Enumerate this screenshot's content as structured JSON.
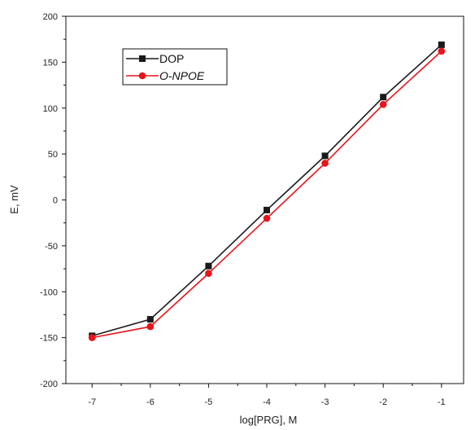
{
  "chart_data": {
    "type": "line",
    "title": "",
    "xlabel": "log[PRG], M",
    "ylabel": "E, mV",
    "xlim": [
      -7.45,
      -0.62
    ],
    "ylim": [
      -200,
      200
    ],
    "xticks": [
      -7,
      -6,
      -5,
      -4,
      -3,
      -2,
      -1
    ],
    "yticks": [
      -200,
      -150,
      -100,
      -50,
      0,
      50,
      100,
      150,
      200
    ],
    "x": [
      -7,
      -6,
      -5,
      -4,
      -3,
      -2,
      -1
    ],
    "legend_position": "top-left",
    "grid": false,
    "series": [
      {
        "name": "DOP",
        "color": "#1a1a1a",
        "marker": "square",
        "values": [
          -148,
          -130,
          -72,
          -11,
          48,
          112,
          169
        ]
      },
      {
        "name": "O-NPOE",
        "color": "#e8141b",
        "marker": "circle",
        "italic": true,
        "values": [
          -150,
          -138,
          -80,
          -20,
          40,
          104,
          162
        ]
      }
    ]
  }
}
